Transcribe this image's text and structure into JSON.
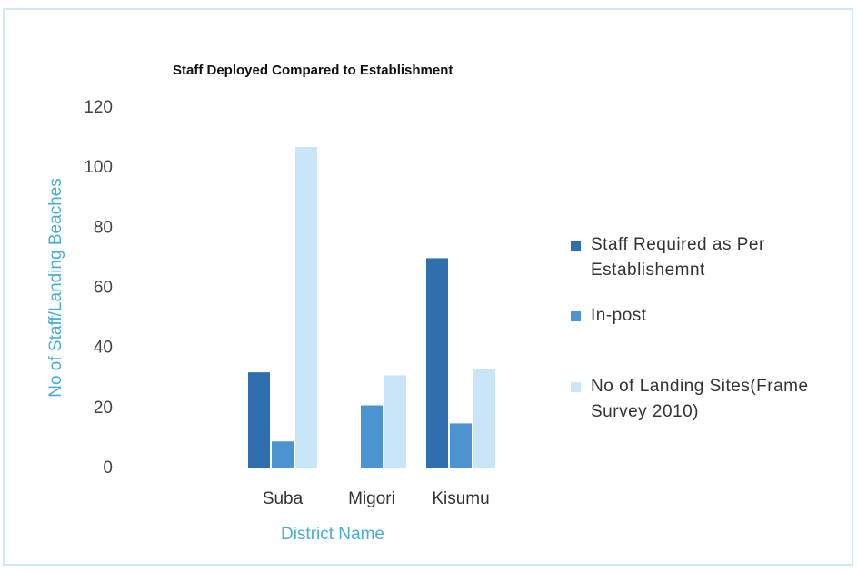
{
  "chart_data": {
    "type": "bar",
    "title": "Staff Deployed Compared to Establishment",
    "x_label": "District Name",
    "y_label": "No of Staff/Landing Beaches",
    "categories": [
      "Suba",
      "Migori",
      "Kisumu"
    ],
    "series": [
      {
        "name": "Staff Required as Per Establishemnt",
        "color": "#2f6fae",
        "values": [
          32,
          null,
          70
        ]
      },
      {
        "name": "In-post",
        "color": "#4b93d1",
        "values": [
          9,
          21,
          15
        ]
      },
      {
        "name": "No of Landing Sites(Frame Survey 2010)",
        "color": "#c8e6f8",
        "values": [
          107,
          31,
          33
        ]
      }
    ],
    "ylim": [
      0,
      120
    ],
    "yticks": [
      0,
      20,
      40,
      60,
      80,
      100,
      120
    ],
    "grid": false,
    "legend": "right"
  }
}
